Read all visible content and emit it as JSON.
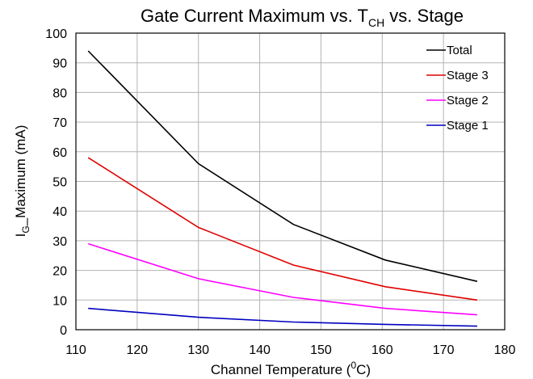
{
  "chart_data": {
    "type": "line",
    "title": "Gate Current Maximum vs. T",
    "title_sub": "CH",
    "title_suffix": " vs. Stage",
    "xlabel_pre": "Channel Temperature (",
    "xlabel_sup": "0",
    "xlabel_post": "C)",
    "ylabel_main": "I",
    "ylabel_sub": "G",
    "ylabel_post": "_Maximum (mA)",
    "xlim": [
      110,
      180
    ],
    "ylim": [
      0,
      100
    ],
    "xticks": [
      110,
      120,
      130,
      140,
      150,
      160,
      170,
      180
    ],
    "yticks": [
      0,
      10,
      20,
      30,
      40,
      50,
      60,
      70,
      80,
      90,
      100
    ],
    "grid": true,
    "legend_position": "top-right",
    "x": [
      112,
      130,
      145.5,
      160.5,
      175.5
    ],
    "series": [
      {
        "name": "Total",
        "color": "#000000",
        "values": [
          94,
          56,
          35.5,
          23.5,
          16.3
        ]
      },
      {
        "name": "Stage 3",
        "color": "#e00000",
        "values": [
          58,
          34.5,
          21.8,
          14.5,
          10
        ]
      },
      {
        "name": "Stage 2",
        "color": "#ff00ff",
        "values": [
          29,
          17.2,
          10.9,
          7.2,
          5
        ]
      },
      {
        "name": "Stage 1",
        "color": "#0000c0",
        "values": [
          7.2,
          4.2,
          2.6,
          1.8,
          1.2
        ]
      }
    ]
  }
}
